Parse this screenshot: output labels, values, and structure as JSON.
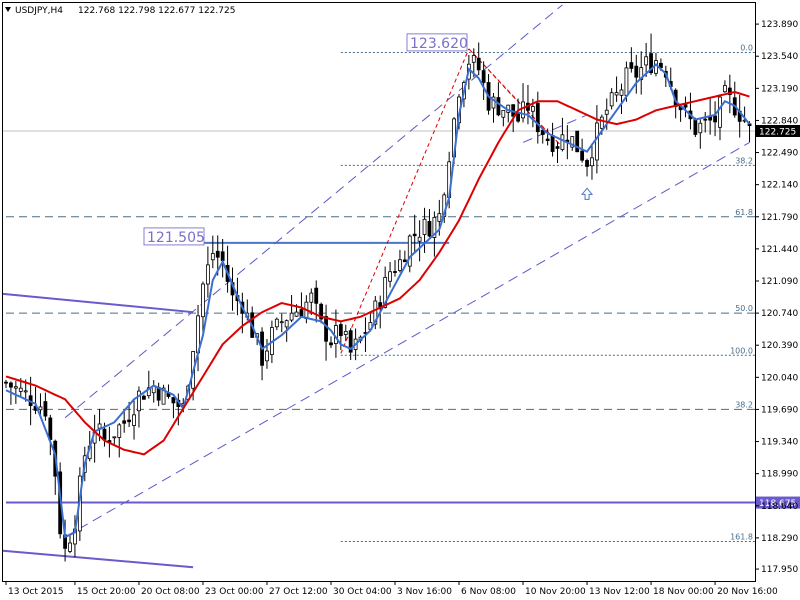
{
  "chart_data": {
    "type": "candlestick",
    "title": "USDJPY,H4",
    "ohlc_text": "122.768 122.798 122.677 122.725",
    "current_price": "122.725",
    "ylim": [
      117.82,
      124.12
    ],
    "y_ticks": [
      "123.890",
      "123.540",
      "123.190",
      "122.840",
      "122.490",
      "122.140",
      "121.790",
      "121.440",
      "121.090",
      "120.740",
      "120.390",
      "120.040",
      "119.690",
      "119.340",
      "118.990",
      "118.640",
      "118.290",
      "117.950"
    ],
    "x_ticks": [
      "13 Oct 2015",
      "15 Oct 20:00",
      "20 Oct 08:00",
      "23 Oct 00:00",
      "27 Oct 12:00",
      "30 Oct 04:00",
      "3 Nov 16:00",
      "6 Nov 08:00",
      "10 Nov 20:00",
      "13 Nov 12:00",
      "18 Nov 00:00",
      "20 Nov 16:00"
    ],
    "x_tick_index": [
      0,
      14,
      27,
      40,
      53,
      66,
      79,
      92,
      105,
      118,
      131,
      144
    ],
    "bar_count": 152,
    "close_path": [
      [
        0,
        119.98
      ],
      [
        4,
        119.85
      ],
      [
        8,
        119.7
      ],
      [
        10,
        119.0
      ],
      [
        11,
        118.4
      ],
      [
        12,
        118.15
      ],
      [
        14,
        118.5
      ],
      [
        16,
        119.2
      ],
      [
        18,
        119.5
      ],
      [
        20,
        119.35
      ],
      [
        24,
        119.55
      ],
      [
        27,
        119.85
      ],
      [
        30,
        119.95
      ],
      [
        33,
        119.8
      ],
      [
        36,
        119.7
      ],
      [
        38,
        120.4
      ],
      [
        40,
        121.05
      ],
      [
        42,
        121.4
      ],
      [
        44,
        121.3
      ],
      [
        46,
        120.9
      ],
      [
        48,
        120.85
      ],
      [
        50,
        120.55
      ],
      [
        52,
        120.25
      ],
      [
        54,
        120.5
      ],
      [
        56,
        120.65
      ],
      [
        58,
        120.75
      ],
      [
        60,
        120.8
      ],
      [
        62,
        120.9
      ],
      [
        64,
        120.6
      ],
      [
        66,
        120.45
      ],
      [
        68,
        120.55
      ],
      [
        70,
        120.3
      ],
      [
        72,
        120.45
      ],
      [
        74,
        120.65
      ],
      [
        76,
        120.9
      ],
      [
        78,
        121.2
      ],
      [
        80,
        121.3
      ],
      [
        82,
        121.55
      ],
      [
        84,
        121.65
      ],
      [
        86,
        121.7
      ],
      [
        88,
        121.8
      ],
      [
        90,
        122.5
      ],
      [
        92,
        123.2
      ],
      [
        94,
        123.5
      ],
      [
        96,
        123.4
      ],
      [
        98,
        123.05
      ],
      [
        100,
        123.0
      ],
      [
        102,
        122.95
      ],
      [
        104,
        122.85
      ],
      [
        106,
        123.0
      ],
      [
        108,
        122.8
      ],
      [
        110,
        122.65
      ],
      [
        112,
        122.6
      ],
      [
        114,
        122.7
      ],
      [
        116,
        122.55
      ],
      [
        118,
        122.4
      ],
      [
        120,
        122.7
      ],
      [
        122,
        122.95
      ],
      [
        124,
        123.1
      ],
      [
        126,
        123.3
      ],
      [
        128,
        123.35
      ],
      [
        130,
        123.45
      ],
      [
        132,
        123.5
      ],
      [
        134,
        123.4
      ],
      [
        136,
        123.1
      ],
      [
        138,
        122.9
      ],
      [
        140,
        122.75
      ],
      [
        142,
        122.8
      ],
      [
        144,
        122.85
      ],
      [
        146,
        123.1
      ],
      [
        148,
        123.0
      ],
      [
        150,
        122.85
      ],
      [
        151,
        122.725
      ]
    ],
    "series": [
      {
        "name": "",
        "color": "#3a6ed0",
        "points": [
          [
            0,
            119.9
          ],
          [
            6,
            119.75
          ],
          [
            10,
            119.2
          ],
          [
            12,
            118.3
          ],
          [
            14,
            118.35
          ],
          [
            16,
            119.1
          ],
          [
            18,
            119.45
          ],
          [
            22,
            119.55
          ],
          [
            26,
            119.8
          ],
          [
            30,
            119.95
          ],
          [
            34,
            119.85
          ],
          [
            36,
            119.7
          ],
          [
            40,
            120.5
          ],
          [
            42,
            121.1
          ],
          [
            44,
            121.3
          ],
          [
            46,
            121.05
          ],
          [
            48,
            120.8
          ],
          [
            50,
            120.6
          ],
          [
            52,
            120.35
          ],
          [
            56,
            120.5
          ],
          [
            60,
            120.7
          ],
          [
            64,
            120.65
          ],
          [
            66,
            120.55
          ],
          [
            68,
            120.4
          ],
          [
            70,
            120.35
          ],
          [
            74,
            120.55
          ],
          [
            78,
            120.95
          ],
          [
            82,
            121.35
          ],
          [
            86,
            121.55
          ],
          [
            88,
            121.65
          ],
          [
            90,
            122.0
          ],
          [
            92,
            122.9
          ],
          [
            94,
            123.4
          ],
          [
            96,
            123.3
          ],
          [
            98,
            123.1
          ],
          [
            102,
            122.95
          ],
          [
            106,
            122.9
          ],
          [
            110,
            122.7
          ],
          [
            114,
            122.6
          ],
          [
            116,
            122.55
          ],
          [
            118,
            122.5
          ],
          [
            120,
            122.65
          ],
          [
            124,
            122.95
          ],
          [
            128,
            123.25
          ],
          [
            132,
            123.45
          ],
          [
            134,
            123.35
          ],
          [
            136,
            123.05
          ],
          [
            140,
            122.85
          ],
          [
            144,
            122.9
          ],
          [
            146,
            123.05
          ],
          [
            148,
            123.0
          ],
          [
            151,
            122.8
          ]
        ]
      },
      {
        "name": "",
        "color": "#dd0000",
        "points": [
          [
            0,
            120.05
          ],
          [
            6,
            119.95
          ],
          [
            12,
            119.8
          ],
          [
            16,
            119.55
          ],
          [
            20,
            119.35
          ],
          [
            24,
            119.25
          ],
          [
            28,
            119.2
          ],
          [
            32,
            119.35
          ],
          [
            36,
            119.7
          ],
          [
            40,
            120.05
          ],
          [
            44,
            120.4
          ],
          [
            48,
            120.6
          ],
          [
            52,
            120.75
          ],
          [
            56,
            120.85
          ],
          [
            60,
            120.8
          ],
          [
            64,
            120.7
          ],
          [
            68,
            120.65
          ],
          [
            72,
            120.7
          ],
          [
            76,
            120.8
          ],
          [
            80,
            120.9
          ],
          [
            84,
            121.1
          ],
          [
            88,
            121.4
          ],
          [
            92,
            121.75
          ],
          [
            96,
            122.2
          ],
          [
            100,
            122.6
          ],
          [
            104,
            122.95
          ],
          [
            108,
            123.05
          ],
          [
            112,
            123.05
          ],
          [
            116,
            122.95
          ],
          [
            120,
            122.85
          ],
          [
            124,
            122.8
          ],
          [
            128,
            122.85
          ],
          [
            132,
            122.95
          ],
          [
            136,
            123.0
          ],
          [
            140,
            123.05
          ],
          [
            144,
            123.1
          ],
          [
            148,
            123.15
          ],
          [
            151,
            123.1
          ]
        ]
      }
    ],
    "channel_lines": [
      {
        "style": "dashed",
        "from": [
          12,
          118.3
        ],
        "to": [
          151,
          122.6
        ]
      },
      {
        "style": "dashed",
        "from": [
          12,
          119.6
        ],
        "to": [
          113,
          124.1
        ]
      },
      {
        "style": "dashed",
        "from": [
          105,
          122.6
        ],
        "to": [
          118,
          122.9
        ]
      }
    ],
    "trend_lines": [
      {
        "color": "#6a5acd",
        "from": [
          0,
          120.95
        ],
        "to": [
          38,
          120.75
        ]
      },
      {
        "color": "#6a5acd",
        "from": [
          0,
          118.15
        ],
        "to": [
          38,
          117.97
        ]
      }
    ],
    "zigzag": [
      {
        "from": [
          68,
          120.3
        ],
        "to": [
          94,
          123.62
        ]
      }
    ],
    "horizontal_levels": [
      {
        "value": 121.505,
        "label": "121.505",
        "start": 40,
        "end": 90,
        "style": "solid",
        "color": "#4a76c8"
      },
      {
        "value": 123.62,
        "label": "123.620",
        "start": 78,
        "end": 94,
        "style": "none",
        "color": "#4a76c8"
      },
      {
        "value": 118.675,
        "label": "118.675",
        "start": 0,
        "end": 151,
        "style": "solid",
        "color": "#6a5acd",
        "price_tag": true
      },
      {
        "value": 121.79,
        "label": "61.8",
        "start": 0,
        "end": 151,
        "style": "dashed",
        "color": "#4a6e8a"
      },
      {
        "value": 120.74,
        "label": "50.0",
        "start": 0,
        "end": 151,
        "style": "dashed",
        "color": "#4a6e8a"
      },
      {
        "value": 119.69,
        "label": "38.2",
        "start": 0,
        "end": 151,
        "style": "dashed",
        "color": "#4a6e8a"
      },
      {
        "value": 123.58,
        "label": "0.0",
        "start": 68,
        "end": 151,
        "style": "dotted",
        "color": "#4a6e8a"
      },
      {
        "value": 122.35,
        "label": "38.2",
        "start": 68,
        "end": 151,
        "style": "dotted",
        "color": "#4a6e8a"
      },
      {
        "value": 120.28,
        "label": "100.0",
        "start": 68,
        "end": 151,
        "style": "dotted",
        "color": "#4a6e8a"
      },
      {
        "value": 118.25,
        "label": "161.8",
        "start": 68,
        "end": 151,
        "style": "dotted",
        "color": "#4a6e8a"
      }
    ],
    "arrow_marker": {
      "index": 118,
      "value": 122.1
    }
  }
}
